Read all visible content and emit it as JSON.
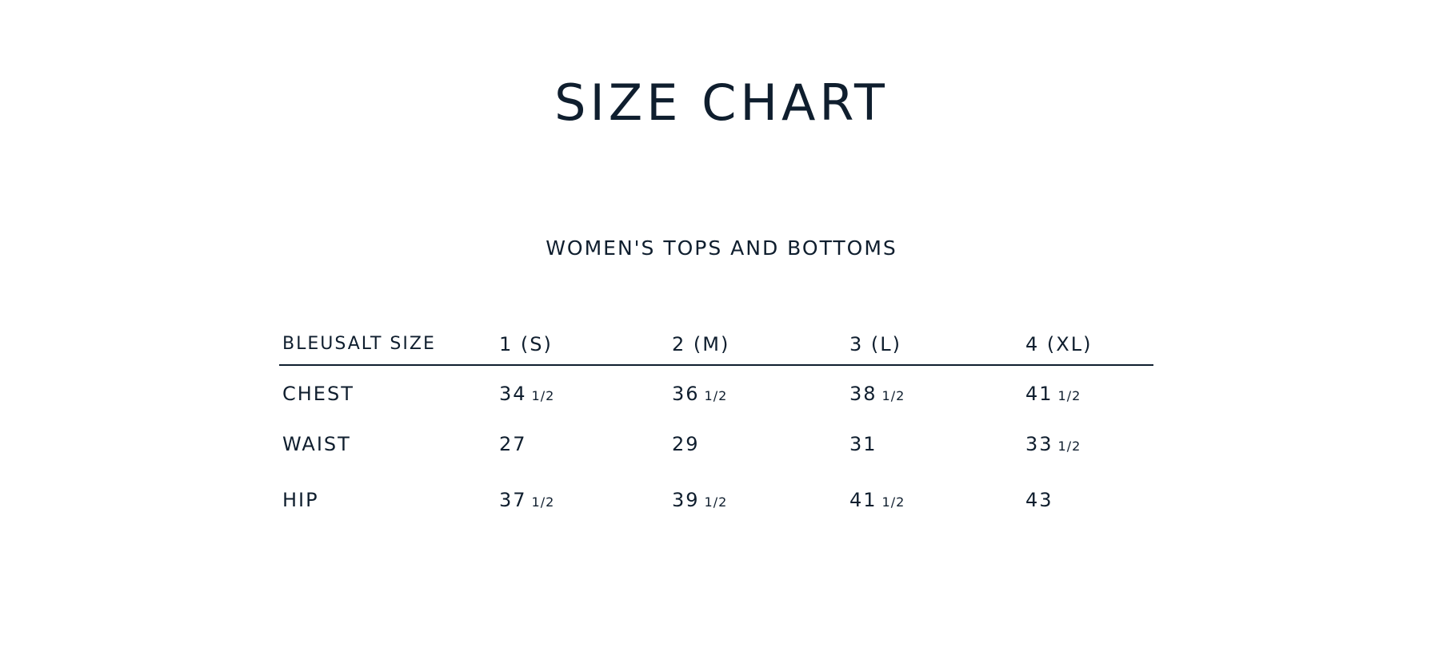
{
  "title": "SIZE CHART",
  "subtitle": "WOMEN'S TOPS AND BOTTOMS",
  "table": {
    "headers": [
      "BLEUSALT SIZE",
      "1 (S)",
      "2 (M)",
      "3 (L)",
      "4 (XL)"
    ],
    "rows": [
      {
        "label": "CHEST",
        "values": [
          {
            "whole": "34",
            "frac": "1/2"
          },
          {
            "whole": "36",
            "frac": "1/2"
          },
          {
            "whole": "38",
            "frac": "1/2"
          },
          {
            "whole": "41",
            "frac": "1/2"
          }
        ]
      },
      {
        "label": "WAIST",
        "values": [
          {
            "whole": "27",
            "frac": ""
          },
          {
            "whole": "29",
            "frac": ""
          },
          {
            "whole": "31",
            "frac": ""
          },
          {
            "whole": "33",
            "frac": "1/2"
          }
        ]
      },
      {
        "label": "HIP",
        "values": [
          {
            "whole": "37",
            "frac": "1/2"
          },
          {
            "whole": "39",
            "frac": "1/2"
          },
          {
            "whole": "41",
            "frac": "1/2"
          },
          {
            "whole": "43",
            "frac": ""
          }
        ]
      }
    ]
  }
}
